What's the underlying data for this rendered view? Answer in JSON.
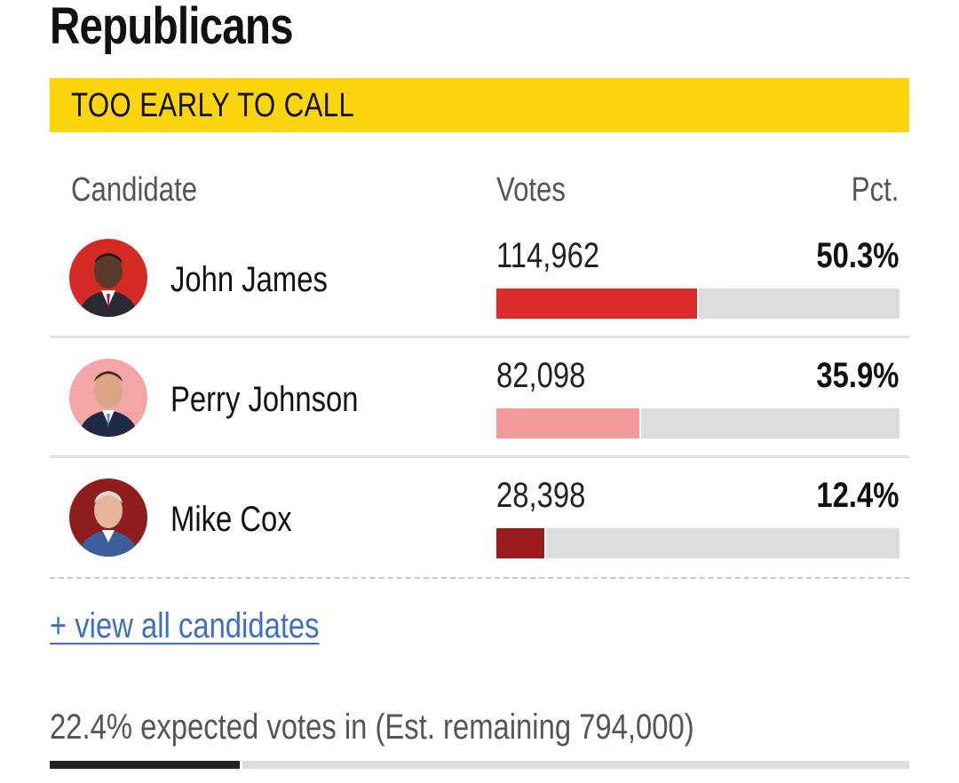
{
  "section": {
    "title": "Republicans",
    "status": "TOO EARLY TO CALL"
  },
  "table": {
    "headers": {
      "candidate": "Candidate",
      "votes": "Votes",
      "pct": "Pct."
    },
    "rows": [
      {
        "name": "John James",
        "votes": "114,962",
        "pct": "50.3%",
        "share": 50.3,
        "bar_color": "#dc2b2b",
        "avatar_bg": "#d62a24",
        "avatar_icon": "candidate-photo"
      },
      {
        "name": "Perry Johnson",
        "votes": "82,098",
        "pct": "35.9%",
        "share": 35.9,
        "bar_color": "#f39b9b",
        "avatar_bg": "#f4a6a6",
        "avatar_icon": "candidate-photo"
      },
      {
        "name": "Mike Cox",
        "votes": "28,398",
        "pct": "12.4%",
        "share": 12.4,
        "bar_color": "#9b1c1c",
        "avatar_bg": "#8f1d1d",
        "avatar_icon": "candidate-photo"
      }
    ]
  },
  "links": {
    "view_all": "+ view all candidates"
  },
  "footer": {
    "expected_text": "22.4% expected votes in (Est. remaining 794,000)",
    "expected_share": 22.4
  },
  "colors": {
    "status_yellow": "#fcd50f",
    "link_blue": "#3d6fc4",
    "track_gray": "#dddddd"
  }
}
